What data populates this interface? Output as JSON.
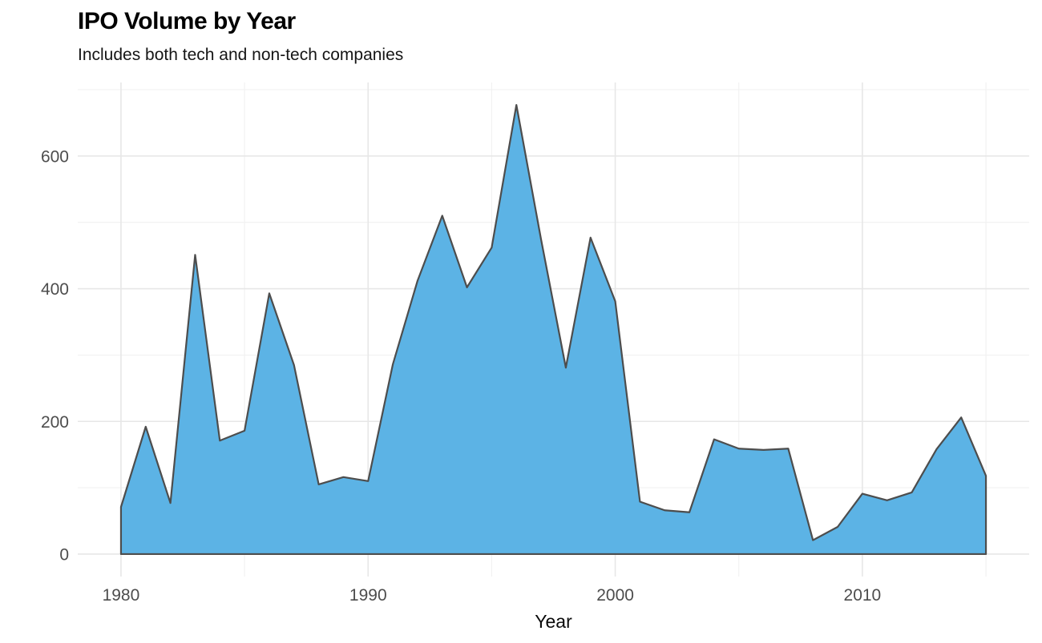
{
  "chart_data": {
    "type": "area",
    "title": "IPO Volume by Year",
    "subtitle": "Includes both tech and non-tech companies",
    "xlabel": "Year",
    "ylabel": "",
    "x": [
      1980,
      1981,
      1982,
      1983,
      1984,
      1985,
      1986,
      1987,
      1988,
      1989,
      1990,
      1991,
      1992,
      1993,
      1994,
      1995,
      1996,
      1997,
      1998,
      1999,
      2000,
      2001,
      2002,
      2003,
      2004,
      2005,
      2006,
      2007,
      2008,
      2009,
      2010,
      2011,
      2012,
      2013,
      2014,
      2015
    ],
    "values": [
      71,
      192,
      77,
      451,
      171,
      186,
      393,
      285,
      105,
      116,
      110,
      286,
      412,
      510,
      402,
      462,
      677,
      474,
      281,
      477,
      381,
      79,
      66,
      63,
      173,
      159,
      157,
      159,
      21,
      41,
      91,
      81,
      93,
      158,
      206,
      118
    ],
    "x_ticks_major": [
      1980,
      1990,
      2000,
      2010
    ],
    "x_tick_labels": [
      "1980",
      "1990",
      "2000",
      "2010"
    ],
    "x_ticks_minor": [
      1985,
      1995,
      2005,
      2015
    ],
    "y_ticks_major": [
      0,
      200,
      400,
      600
    ],
    "y_tick_labels": [
      "0",
      "200",
      "400",
      "600"
    ],
    "y_ticks_minor": [
      100,
      300,
      500,
      700
    ],
    "xlim": [
      1980,
      2015
    ],
    "ylim": [
      0,
      677
    ],
    "xlim_expanded": [
      1978.25,
      2016.75
    ],
    "ylim_expanded": [
      -33.85,
      710.85
    ],
    "grid": true,
    "legend": "none",
    "colors": {
      "background": "#ffffff",
      "area_fill": "#5cb3e5",
      "area_stroke": "#4d4d4d",
      "grid_major": "#e7e7e7",
      "grid_minor": "#f1f1f1",
      "tick_text": "#4d4d4d",
      "title_text": "#000000",
      "subtitle_text": "#151515",
      "axis_title_text": "#0a0a0a"
    }
  }
}
